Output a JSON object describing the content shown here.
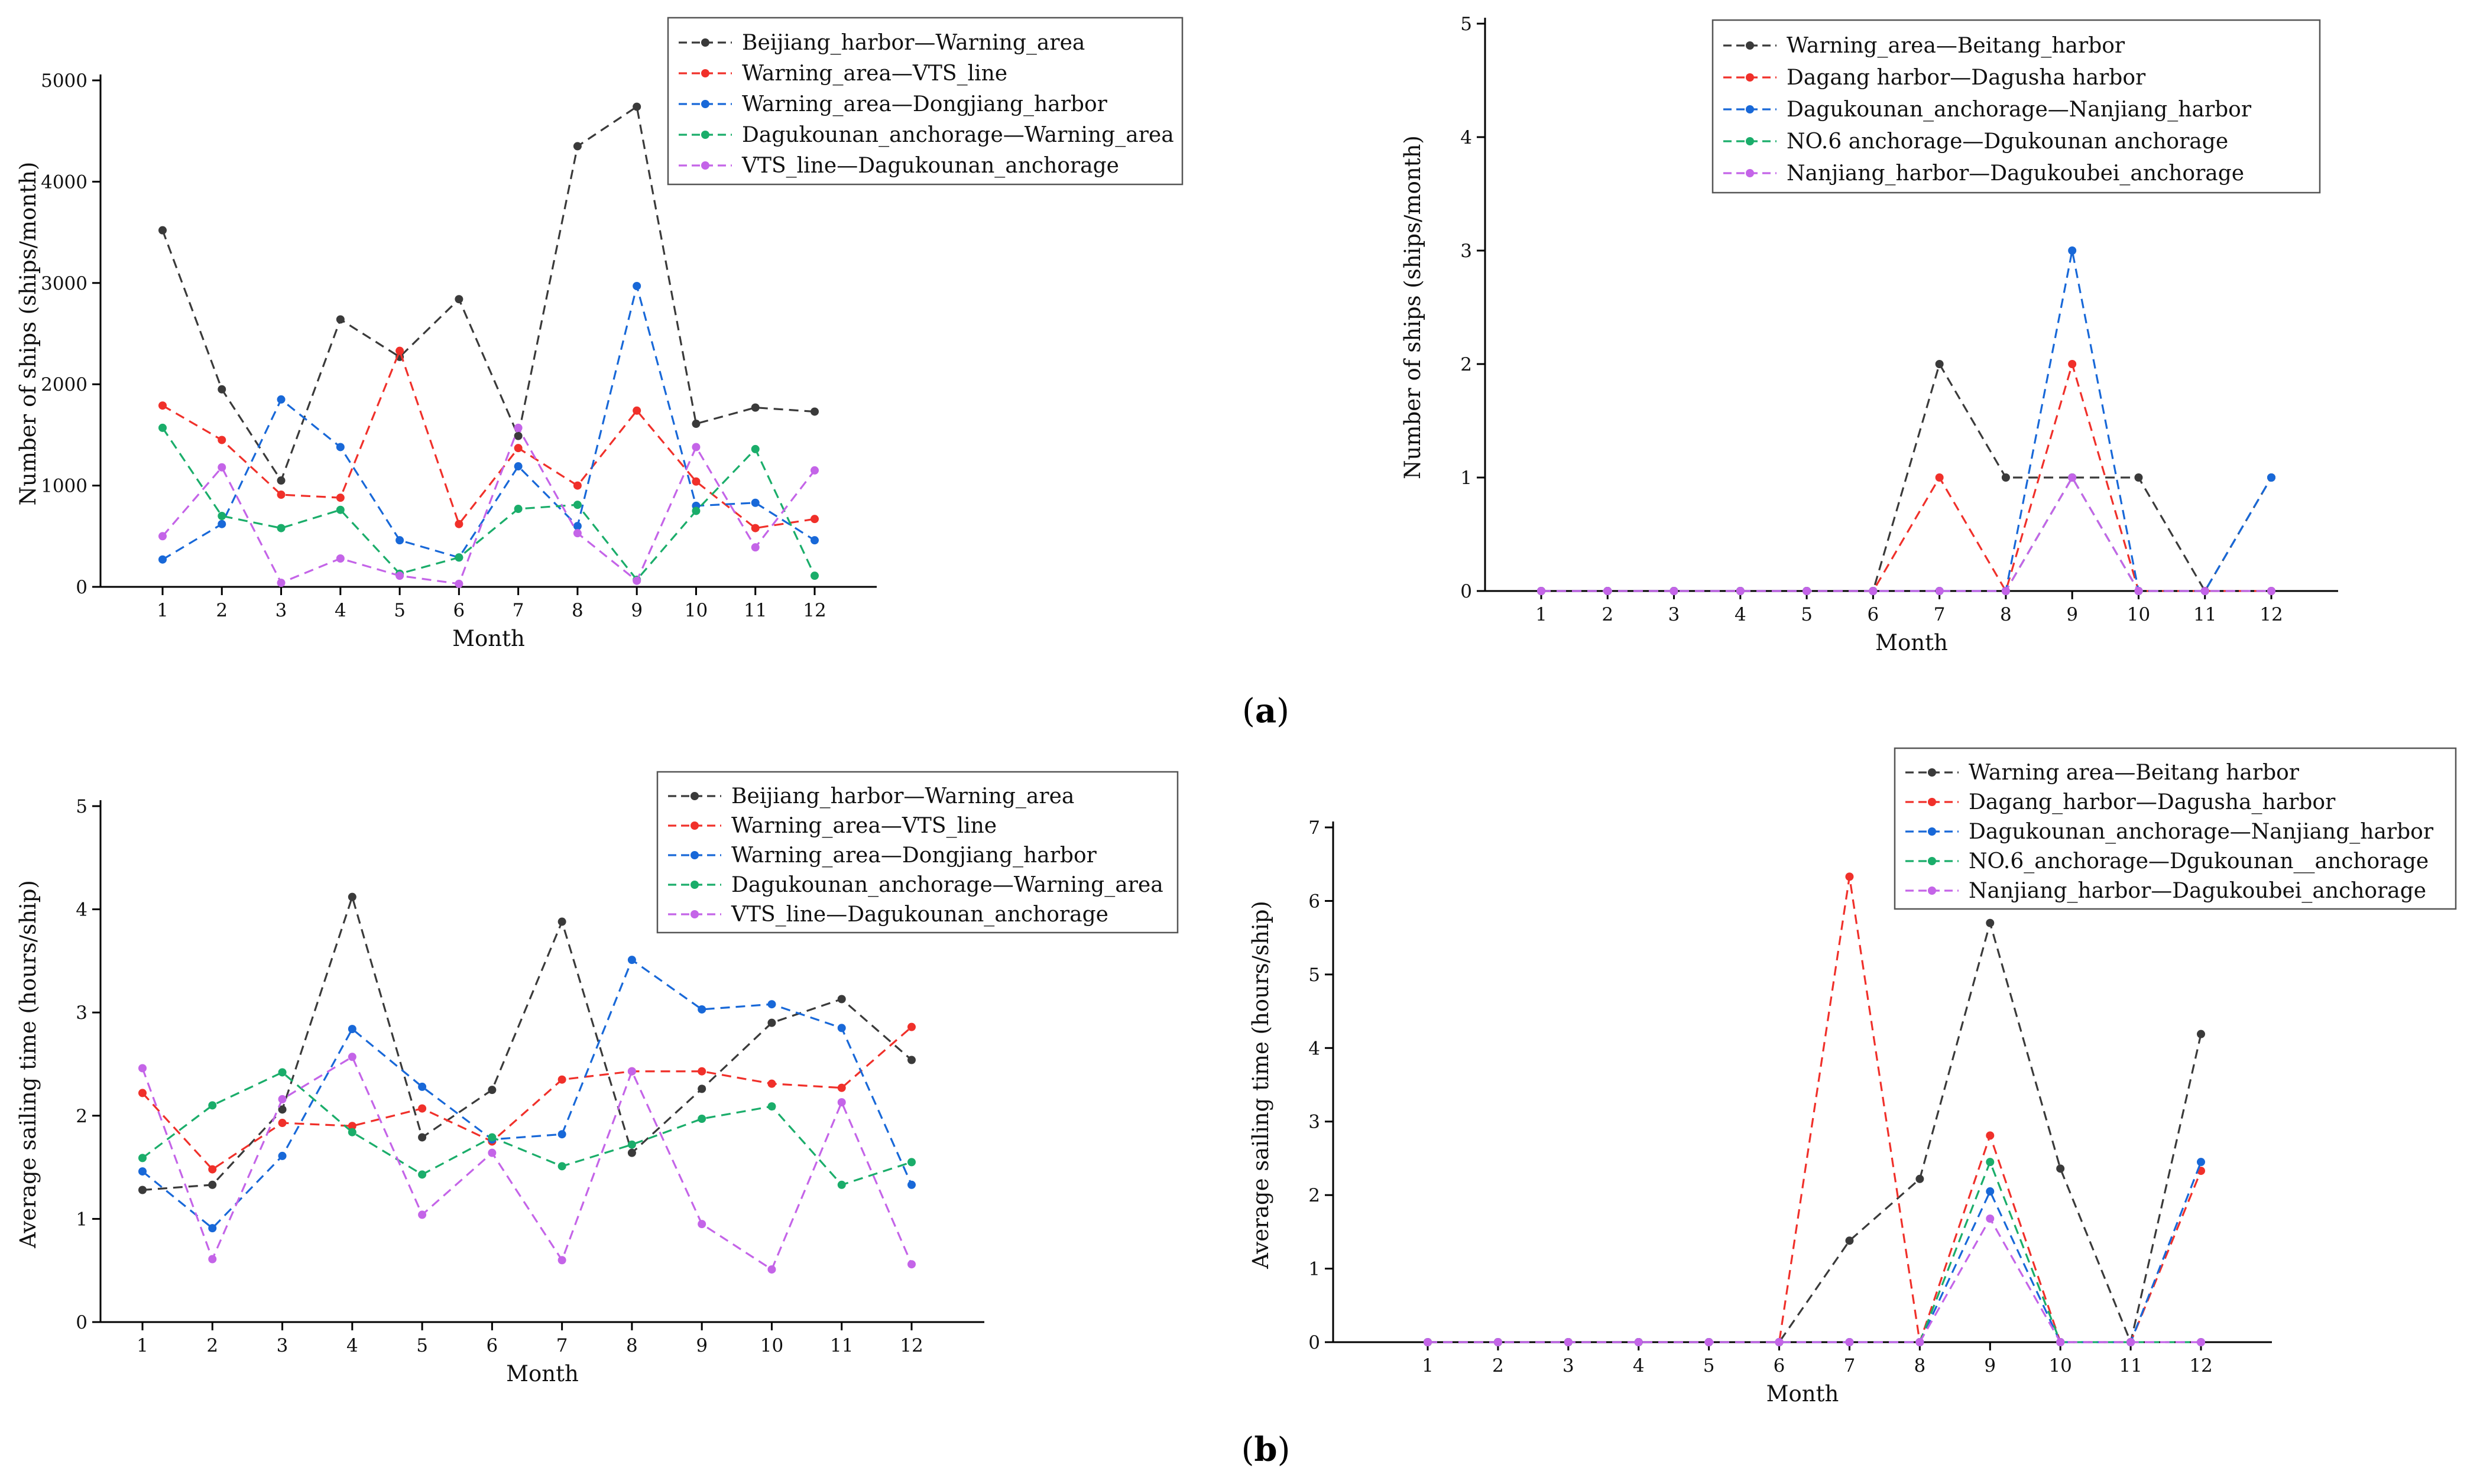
{
  "figure": {
    "panel_a_label": "a",
    "panel_b_label": "b"
  },
  "chart_data": [
    {
      "id": "a-left",
      "type": "line",
      "title": "",
      "xlabel": "Month",
      "ylabel": "Number of ships (ships/month)",
      "categories": [
        "1",
        "2",
        "3",
        "4",
        "5",
        "6",
        "7",
        "8",
        "9",
        "10",
        "11",
        "12"
      ],
      "ylim": [
        0,
        5000
      ],
      "yticks": [
        0,
        1000,
        2000,
        3000,
        4000,
        5000
      ],
      "ytick_labels": [
        "0",
        "1000",
        "2000",
        "3000",
        "4000",
        "5000"
      ],
      "legend_placement": "top-right",
      "series": [
        {
          "name": "Beijiang_harbor—Warning_area",
          "color": "#3a3a3a",
          "values": [
            3520,
            1950,
            1050,
            2640,
            2270,
            2840,
            1490,
            4350,
            4740,
            1610,
            1770,
            1730
          ]
        },
        {
          "name": "Warning_area—VTS_line",
          "color": "#f0302a",
          "values": [
            1790,
            1450,
            910,
            880,
            2330,
            620,
            1370,
            1000,
            1740,
            1040,
            580,
            670
          ]
        },
        {
          "name": "Warning_area—Dongjiang_harbor",
          "color": "#1868d8",
          "values": [
            270,
            620,
            1850,
            1380,
            460,
            290,
            1190,
            600,
            2970,
            800,
            830,
            460
          ]
        },
        {
          "name": "Dagukounan_anchorage—Warning_area",
          "color": "#1aad6a",
          "values": [
            1570,
            700,
            580,
            760,
            130,
            290,
            770,
            810,
            70,
            750,
            1360,
            110
          ]
        },
        {
          "name": "VTS_line—Dagukounan_anchorage",
          "color": "#c464e8",
          "values": [
            500,
            1180,
            40,
            280,
            110,
            30,
            1570,
            530,
            60,
            1380,
            390,
            1150
          ]
        }
      ]
    },
    {
      "id": "a-right",
      "type": "line",
      "title": "",
      "xlabel": "Month",
      "ylabel": "Number of ships (ships/month)",
      "categories": [
        "1",
        "2",
        "3",
        "4",
        "5",
        "6",
        "7",
        "8",
        "9",
        "10",
        "11",
        "12"
      ],
      "ylim": [
        0,
        5
      ],
      "yticks": [
        0,
        1,
        2,
        3,
        4,
        5
      ],
      "ytick_labels": [
        "0",
        "1",
        "2",
        "3",
        "4",
        "5"
      ],
      "legend_placement": "top-right",
      "series": [
        {
          "name": "Warning_area—Beitang_harbor",
          "color": "#3a3a3a",
          "values": [
            0,
            0,
            0,
            0,
            0,
            0,
            2,
            1,
            1,
            1,
            0,
            1
          ]
        },
        {
          "name": "Dagang harbor—Dagusha harbor",
          "color": "#f0302a",
          "values": [
            0,
            0,
            0,
            0,
            0,
            0,
            1,
            0,
            2,
            0,
            0,
            0
          ]
        },
        {
          "name": "Dagukounan_anchorage—Nanjiang_harbor",
          "color": "#1868d8",
          "values": [
            0,
            0,
            0,
            0,
            0,
            0,
            0,
            0,
            3,
            0,
            0,
            1
          ]
        },
        {
          "name": "NO.6 anchorage—Dgukounan  anchorage",
          "color": "#1aad6a",
          "values": [
            0,
            0,
            0,
            0,
            0,
            0,
            0,
            0,
            1,
            0,
            0,
            0
          ]
        },
        {
          "name": "Nanjiang_harbor—Dagukoubei_anchorage",
          "color": "#c464e8",
          "values": [
            0,
            0,
            0,
            0,
            0,
            0,
            0,
            0,
            1,
            0,
            0,
            0
          ]
        }
      ]
    },
    {
      "id": "b-left",
      "type": "line",
      "title": "",
      "xlabel": "Month",
      "ylabel": "Average sailing time (hours/ship)",
      "categories": [
        "1",
        "2",
        "3",
        "4",
        "5",
        "6",
        "7",
        "8",
        "9",
        "10",
        "11",
        "12"
      ],
      "ylim": [
        0,
        5
      ],
      "yticks": [
        0,
        1,
        2,
        3,
        4,
        5
      ],
      "ytick_labels": [
        "0",
        "1",
        "2",
        "3",
        "4",
        "5"
      ],
      "legend_placement": "top-right",
      "series": [
        {
          "name": "Beijiang_harbor—Warning_area",
          "color": "#3a3a3a",
          "values": [
            1.28,
            1.33,
            2.06,
            4.12,
            1.79,
            2.25,
            3.88,
            1.64,
            2.26,
            2.9,
            3.13,
            2.54
          ]
        },
        {
          "name": "Warning_area—VTS_line",
          "color": "#f0302a",
          "values": [
            2.22,
            1.48,
            1.93,
            1.9,
            2.07,
            1.75,
            2.35,
            2.43,
            2.43,
            2.31,
            2.27,
            2.86
          ]
        },
        {
          "name": "Warning_area—Dongjiang_harbor",
          "color": "#1868d8",
          "values": [
            1.46,
            0.91,
            1.61,
            2.84,
            2.28,
            1.77,
            1.82,
            3.51,
            3.03,
            3.08,
            2.85,
            1.33
          ]
        },
        {
          "name": "Dagukounan_anchorage—Warning_area",
          "color": "#1aad6a",
          "values": [
            1.59,
            2.1,
            2.42,
            1.84,
            1.43,
            1.79,
            1.51,
            1.72,
            1.97,
            2.09,
            1.33,
            1.55
          ]
        },
        {
          "name": "VTS_line—Dagukounan_anchorage",
          "color": "#c464e8",
          "values": [
            2.46,
            0.61,
            2.16,
            2.57,
            1.04,
            1.64,
            0.6,
            2.43,
            0.95,
            0.51,
            2.13,
            0.56
          ]
        }
      ]
    },
    {
      "id": "b-right",
      "type": "line",
      "title": "",
      "xlabel": "Month",
      "ylabel": "Average sailing time (hours/ship)",
      "categories": [
        "1",
        "2",
        "3",
        "4",
        "5",
        "6",
        "7",
        "8",
        "9",
        "10",
        "11",
        "12"
      ],
      "ylim": [
        0,
        7
      ],
      "yticks": [
        0,
        1,
        2,
        3,
        4,
        5,
        6,
        7
      ],
      "ytick_labels": [
        "0",
        "1",
        "2",
        "3",
        "4",
        "5",
        "6",
        "7"
      ],
      "legend_placement": "top-right",
      "series": [
        {
          "name": "Warning area—Beitang harbor",
          "color": "#3a3a3a",
          "values": [
            0,
            0,
            0,
            0,
            0,
            0,
            1.38,
            2.22,
            5.7,
            2.36,
            0,
            4.19
          ]
        },
        {
          "name": "Dagang_harbor—Dagusha_harbor",
          "color": "#f0302a",
          "values": [
            0,
            0,
            0,
            0,
            0,
            0,
            6.33,
            0,
            2.81,
            0,
            0,
            2.33
          ]
        },
        {
          "name": "Dagukounan_anchorage—Nanjiang_harbor",
          "color": "#1868d8",
          "values": [
            0,
            0,
            0,
            0,
            0,
            0,
            0,
            0,
            2.05,
            0,
            0,
            2.45
          ]
        },
        {
          "name": "NO.6_anchorage—Dgukounan__anchorage",
          "color": "#1aad6a",
          "values": [
            0,
            0,
            0,
            0,
            0,
            0,
            0,
            0,
            2.45,
            0,
            0,
            0
          ]
        },
        {
          "name": "Nanjiang_harbor—Dagukoubei_anchorage",
          "color": "#c464e8",
          "values": [
            0,
            0,
            0,
            0,
            0,
            0,
            0,
            0,
            1.68,
            0,
            0,
            0
          ]
        }
      ]
    }
  ]
}
